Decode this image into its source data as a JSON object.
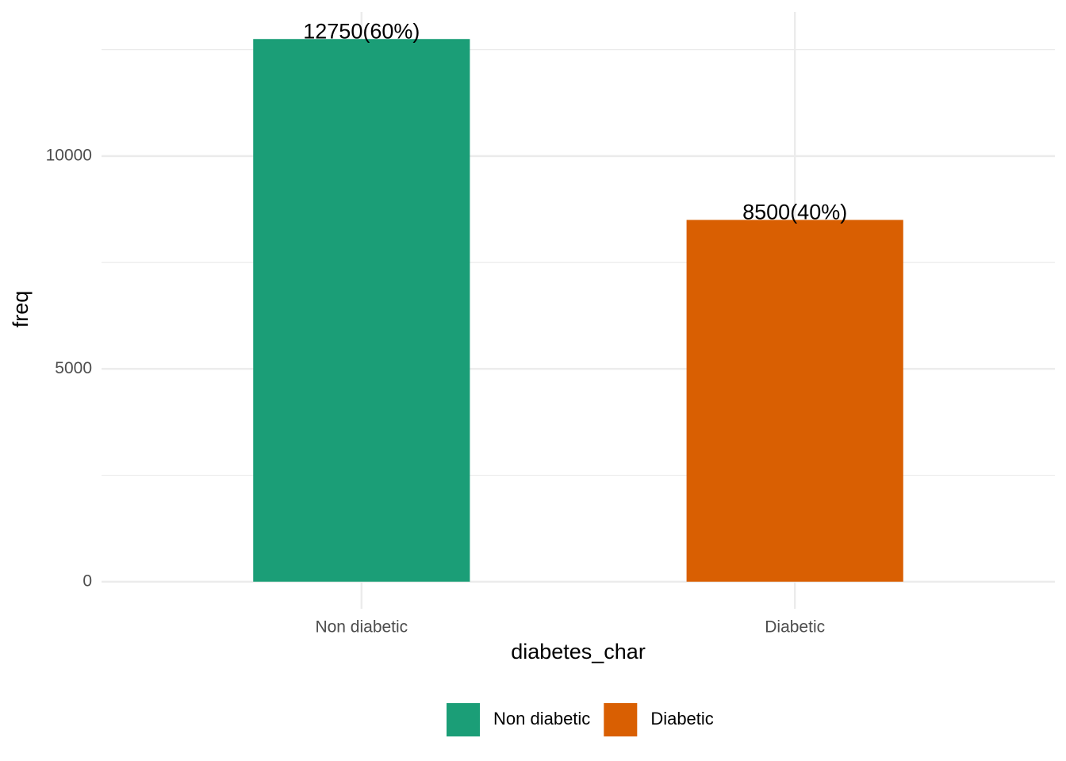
{
  "chart_data": {
    "type": "bar",
    "x_label": "diabetes_char",
    "y_label": "freq",
    "categories": [
      "Non diabetic",
      "Diabetic"
    ],
    "values": [
      12750,
      8500
    ],
    "value_labels": [
      "12750(60%)",
      "8500(40%)"
    ],
    "colors": [
      "#1b9e77",
      "#d95f02"
    ],
    "ylim": [
      -637.5,
      13387.5
    ],
    "yticks": [
      0,
      5000,
      10000
    ],
    "minor_yticks": [
      2500,
      7500,
      12500
    ],
    "grid": true,
    "legend": "bottom"
  }
}
